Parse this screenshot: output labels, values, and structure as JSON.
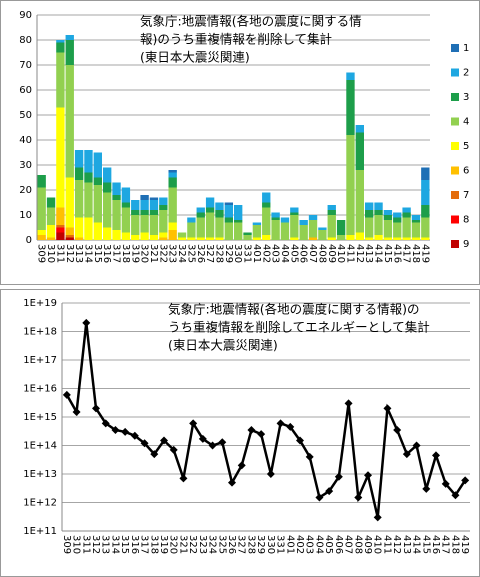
{
  "chart_data": [
    {
      "type": "stacked-bar",
      "title": [
        "気象庁:地震情報(各地の震度に関する情",
        "報)のうち重複情報を削除して集計",
        "(東日本大震災関連)"
      ],
      "categories": [
        "309",
        "310",
        "311",
        "312",
        "313",
        "314",
        "315",
        "316",
        "317",
        "318",
        "319",
        "320",
        "321",
        "322",
        "323",
        "324",
        "325",
        "326",
        "327",
        "328",
        "329",
        "330",
        "331",
        "401",
        "402",
        "403",
        "404",
        "405",
        "406",
        "407",
        "408",
        "409",
        "410",
        "411",
        "412",
        "413",
        "414",
        "415",
        "416",
        "417",
        "418",
        "419"
      ],
      "series": [
        {
          "name": "1",
          "color": "#1f6fb5",
          "values": [
            0,
            0,
            0,
            0,
            0,
            0,
            0,
            0,
            0,
            0,
            0,
            2,
            1,
            0,
            1,
            0,
            0,
            0,
            0,
            0,
            1,
            0,
            0,
            0,
            0,
            0,
            0,
            0,
            0,
            0,
            0,
            0,
            0,
            0,
            0,
            0,
            0,
            0,
            0,
            0,
            0,
            5
          ]
        },
        {
          "name": "2",
          "color": "#1ea7e1",
          "values": [
            0,
            0,
            1,
            2,
            7,
            9,
            10,
            6,
            5,
            6,
            4,
            4,
            4,
            3,
            2,
            0,
            2,
            2,
            4,
            3,
            5,
            6,
            0,
            1,
            4,
            2,
            2,
            2,
            2,
            2,
            1,
            2,
            0,
            3,
            3,
            3,
            3,
            2,
            2,
            2,
            2,
            10
          ]
        },
        {
          "name": "3",
          "color": "#1d9e4a",
          "values": [
            5,
            4,
            4,
            10,
            5,
            4,
            3,
            4,
            2,
            2,
            2,
            2,
            2,
            2,
            4,
            0,
            0,
            2,
            2,
            3,
            2,
            1,
            1,
            0,
            2,
            1,
            0,
            1,
            0,
            0,
            0,
            2,
            6,
            22,
            15,
            3,
            2,
            2,
            2,
            2,
            1,
            5
          ]
        },
        {
          "name": "4",
          "color": "#92d050",
          "values": [
            17,
            7,
            22,
            45,
            15,
            14,
            15,
            14,
            12,
            10,
            8,
            7,
            8,
            9,
            14,
            2,
            6,
            8,
            10,
            8,
            7,
            7,
            2,
            5,
            11,
            8,
            7,
            9,
            6,
            7,
            4,
            9,
            2,
            40,
            25,
            8,
            8,
            7,
            6,
            8,
            6,
            8
          ]
        },
        {
          "name": "5",
          "color": "#ffff00",
          "values": [
            2,
            5,
            40,
            20,
            8,
            9,
            7,
            5,
            4,
            3,
            2,
            3,
            2,
            2,
            3,
            1,
            1,
            1,
            1,
            1,
            0,
            0,
            0,
            1,
            2,
            0,
            0,
            1,
            0,
            0,
            0,
            1,
            0,
            2,
            3,
            1,
            2,
            1,
            1,
            1,
            1,
            1
          ]
        },
        {
          "name": "6",
          "color": "#ffc000",
          "values": [
            2,
            1,
            7,
            3,
            1,
            0,
            0,
            0,
            0,
            0,
            0,
            0,
            0,
            1,
            4,
            0,
            0,
            0,
            0,
            0,
            0,
            0,
            0,
            0,
            0,
            0,
            0,
            0,
            0,
            1,
            0,
            0,
            0,
            0,
            0,
            0,
            0,
            0,
            0,
            0,
            0,
            0
          ]
        },
        {
          "name": "7",
          "color": "#e46c0a",
          "values": [
            0,
            0,
            1,
            1,
            0,
            0,
            0,
            0,
            0,
            0,
            0,
            0,
            0,
            0,
            0,
            0,
            0,
            0,
            0,
            0,
            0,
            0,
            0,
            0,
            0,
            0,
            0,
            0,
            0,
            0,
            0,
            0,
            0,
            0,
            0,
            0,
            0,
            0,
            0,
            0,
            0,
            0
          ]
        },
        {
          "name": "8",
          "color": "#ff0000",
          "values": [
            0,
            0,
            2,
            0,
            0,
            0,
            0,
            0,
            0,
            0,
            0,
            0,
            0,
            0,
            0,
            0,
            0,
            0,
            0,
            0,
            0,
            0,
            0,
            0,
            0,
            0,
            0,
            0,
            0,
            0,
            0,
            0,
            0,
            0,
            0,
            0,
            0,
            0,
            0,
            0,
            0,
            0
          ]
        },
        {
          "name": "9",
          "color": "#c00000",
          "values": [
            0,
            0,
            3,
            1,
            0,
            0,
            0,
            0,
            0,
            0,
            0,
            0,
            0,
            0,
            0,
            0,
            0,
            0,
            0,
            0,
            0,
            0,
            0,
            0,
            0,
            0,
            0,
            0,
            0,
            0,
            0,
            0,
            0,
            0,
            0,
            0,
            0,
            0,
            0,
            0,
            0,
            0
          ]
        }
      ],
      "ylim": [
        0,
        90
      ],
      "yticks": [
        0,
        10,
        20,
        30,
        40,
        50,
        60,
        70,
        80,
        90
      ],
      "grid": true,
      "legend": "right"
    },
    {
      "type": "line",
      "title": [
        "気象庁:地震情報(各地の震度に関する情報)の",
        "うち重複情報を削除してエネルギーとして集計",
        "(東日本大震災関連)"
      ],
      "categories": [
        "309",
        "310",
        "311",
        "312",
        "313",
        "314",
        "315",
        "316",
        "317",
        "318",
        "319",
        "320",
        "321",
        "322",
        "323",
        "324",
        "325",
        "326",
        "327",
        "328",
        "329",
        "330",
        "331",
        "401",
        "402",
        "403",
        "404",
        "405",
        "406",
        "407",
        "408",
        "409",
        "410",
        "411",
        "412",
        "413",
        "414",
        "415",
        "416",
        "417",
        "418",
        "419"
      ],
      "values": [
        6000000000000000.0,
        1500000000000000.0,
        2e+18,
        2000000000000000.0,
        600000000000000.0,
        350000000000000.0,
        300000000000000.0,
        220000000000000.0,
        120000000000000.0,
        50000000000000.0,
        150000000000000.0,
        70000000000000.0,
        7000000000000.0,
        600000000000000.0,
        170000000000000.0,
        100000000000000.0,
        130000000000000.0,
        5000000000000.0,
        20000000000000.0,
        350000000000000.0,
        250000000000000.0,
        10000000000000.0,
        600000000000000.0,
        450000000000000.0,
        150000000000000.0,
        40000000000000.0,
        1500000000000.0,
        2500000000000.0,
        8000000000000.0,
        3000000000000000.0,
        1500000000000.0,
        9000000000000.0,
        300000000000.0,
        2000000000000000.0,
        350000000000000.0,
        50000000000000.0,
        100000000000000.0,
        3000000000000.0,
        45000000000000.0,
        4500000000000.0,
        1800000000000.0,
        6000000000000.0
      ],
      "color": "#000000",
      "log": true,
      "ylim": [
        100000000000.0,
        1e+19
      ],
      "yticks": [
        {
          "value": 100000000000.0,
          "label": "1E+11"
        },
        {
          "value": 1000000000000.0,
          "label": "1E+12"
        },
        {
          "value": 10000000000000.0,
          "label": "1E+13"
        },
        {
          "value": 100000000000000.0,
          "label": "1E+14"
        },
        {
          "value": 1000000000000000.0,
          "label": "1E+15"
        },
        {
          "value": 1e+16,
          "label": "1E+16"
        },
        {
          "value": 1e+17,
          "label": "1E+17"
        },
        {
          "value": 1e+18,
          "label": "1E+18"
        },
        {
          "value": 1e+19,
          "label": "1E+19"
        }
      ],
      "grid": true
    }
  ]
}
